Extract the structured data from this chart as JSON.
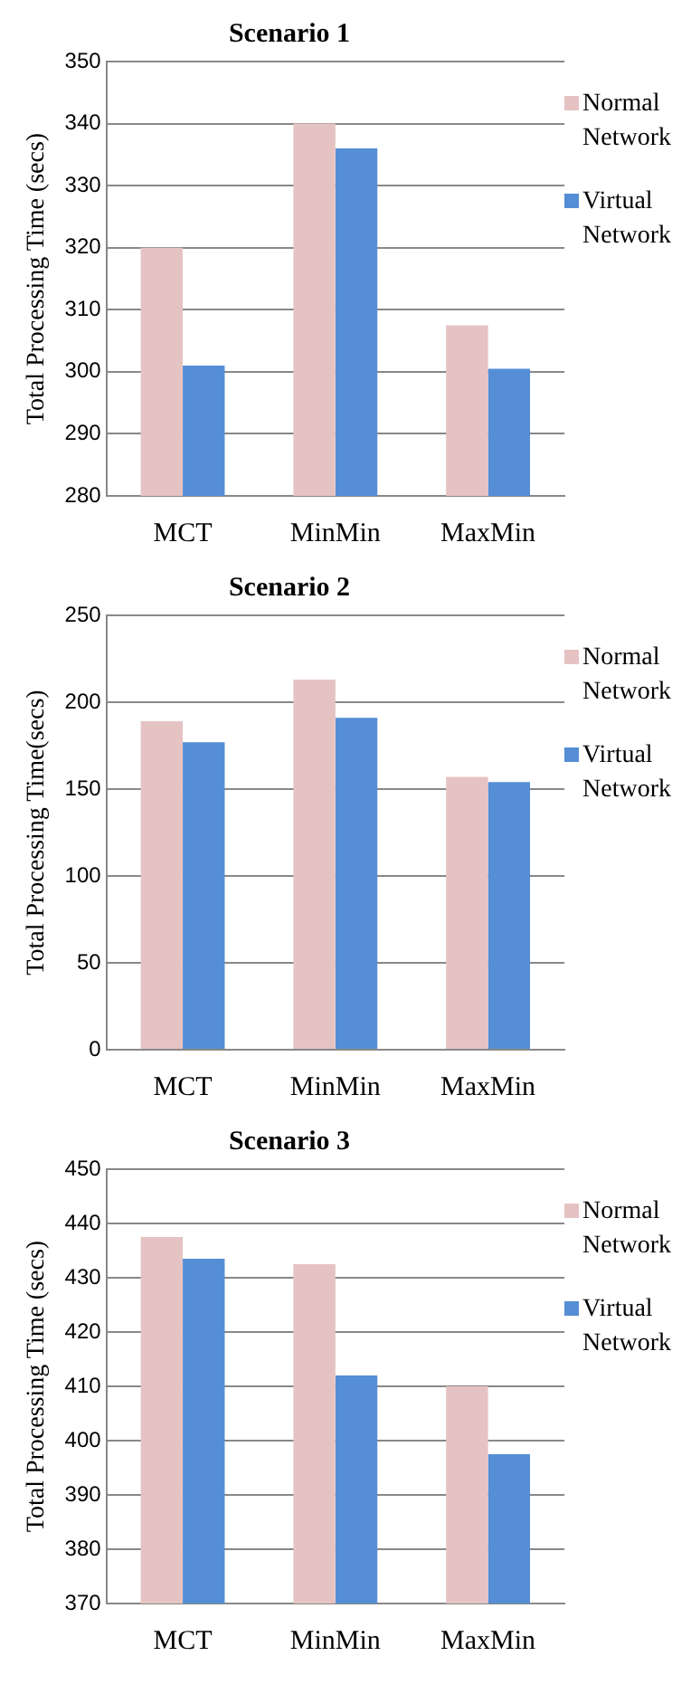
{
  "chart_data": [
    {
      "type": "bar",
      "title": "Scenario 1",
      "ylabel": "Total Processing Time (secs)",
      "categories": [
        "MCT",
        "MinMin",
        "MaxMin"
      ],
      "series": [
        {
          "name": "Normal Network",
          "color": "#e6c3c3",
          "values": [
            320,
            340,
            307.5
          ]
        },
        {
          "name": "Virtual Network",
          "color": "#558ed5",
          "values": [
            301,
            336,
            300.5
          ]
        }
      ],
      "ylim": [
        280,
        350
      ],
      "yticks": [
        280,
        290,
        300,
        310,
        320,
        330,
        340,
        350
      ],
      "grid": "y",
      "legend": "top right"
    },
    {
      "type": "bar",
      "title": "Scenario 2",
      "ylabel": "Total Processing Time(secs)",
      "categories": [
        "MCT",
        "MinMin",
        "MaxMin"
      ],
      "series": [
        {
          "name": "Normal Network",
          "color": "#e6c3c3",
          "values": [
            189,
            213,
            157
          ]
        },
        {
          "name": "Virtual Network",
          "color": "#558ed5",
          "values": [
            177,
            191,
            154
          ]
        }
      ],
      "ylim": [
        0,
        250
      ],
      "yticks": [
        0,
        50,
        100,
        150,
        200,
        250
      ],
      "grid": "y",
      "legend": "top right"
    },
    {
      "type": "bar",
      "title": "Scenario 3",
      "ylabel": "Total Processing Time (secs)",
      "categories": [
        "MCT",
        "MinMin",
        "MaxMin"
      ],
      "series": [
        {
          "name": "Normal Network",
          "color": "#e6c3c3",
          "values": [
            437.5,
            432.5,
            410
          ]
        },
        {
          "name": "Virtual Network",
          "color": "#558ed5",
          "values": [
            433.5,
            412,
            397.5
          ]
        }
      ],
      "ylim": [
        370,
        450
      ],
      "yticks": [
        370,
        380,
        390,
        400,
        410,
        420,
        430,
        440,
        450
      ],
      "grid": "y",
      "legend": "top right"
    }
  ]
}
